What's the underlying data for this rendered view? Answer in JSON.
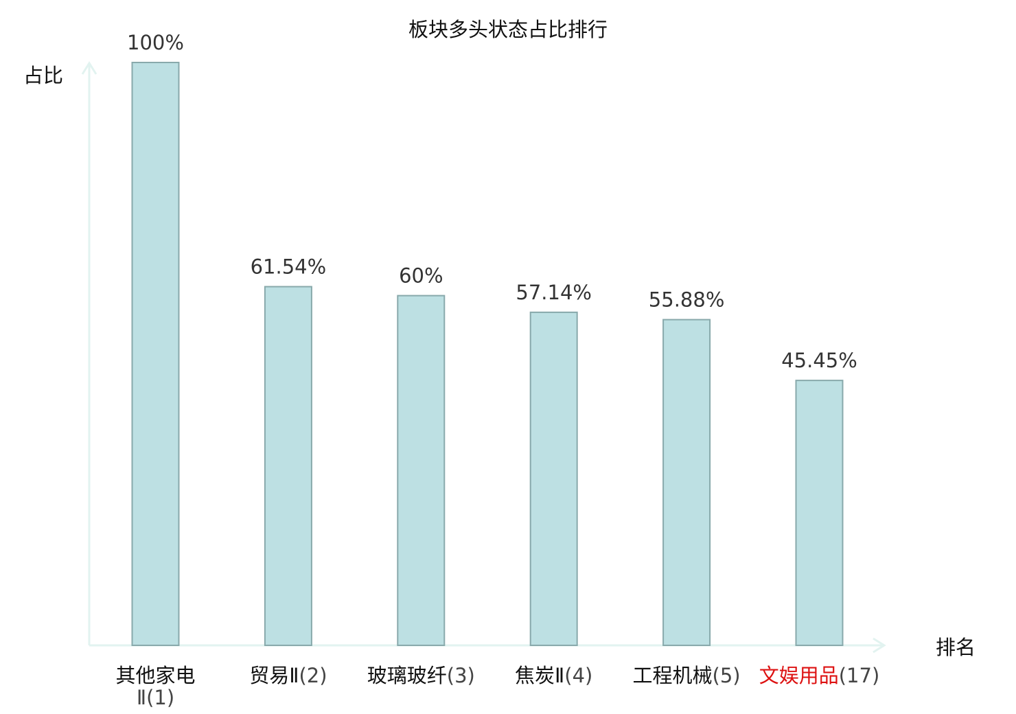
{
  "chart_data": {
    "type": "bar",
    "title": "板块多头状态占比排行",
    "ylabel": "占比",
    "xlabel": "排名",
    "ylim": [
      0,
      100
    ],
    "grid": false,
    "categories": [
      {
        "name": "其他家电Ⅱ",
        "rank": "(1)",
        "highlight": false
      },
      {
        "name": "贸易Ⅱ",
        "rank": "(2)",
        "highlight": false
      },
      {
        "name": "玻璃玻纤",
        "rank": "(3)",
        "highlight": false
      },
      {
        "name": "焦炭Ⅱ",
        "rank": "(4)",
        "highlight": false
      },
      {
        "name": "工程机械",
        "rank": "(5)",
        "highlight": false
      },
      {
        "name": "文娱用品",
        "rank": "(17)",
        "highlight": true
      }
    ],
    "values": [
      100,
      61.54,
      60,
      57.14,
      55.88,
      45.45
    ],
    "value_labels": [
      "100%",
      "61.54%",
      "60%",
      "57.14%",
      "55.88%",
      "45.45%"
    ],
    "colors": {
      "bar_fill": "#bde0e3",
      "bar_stroke": "#88a9ab",
      "axis": "#e2f3f0",
      "label_normal": "#111111",
      "label_highlight": "#dd1111"
    }
  }
}
